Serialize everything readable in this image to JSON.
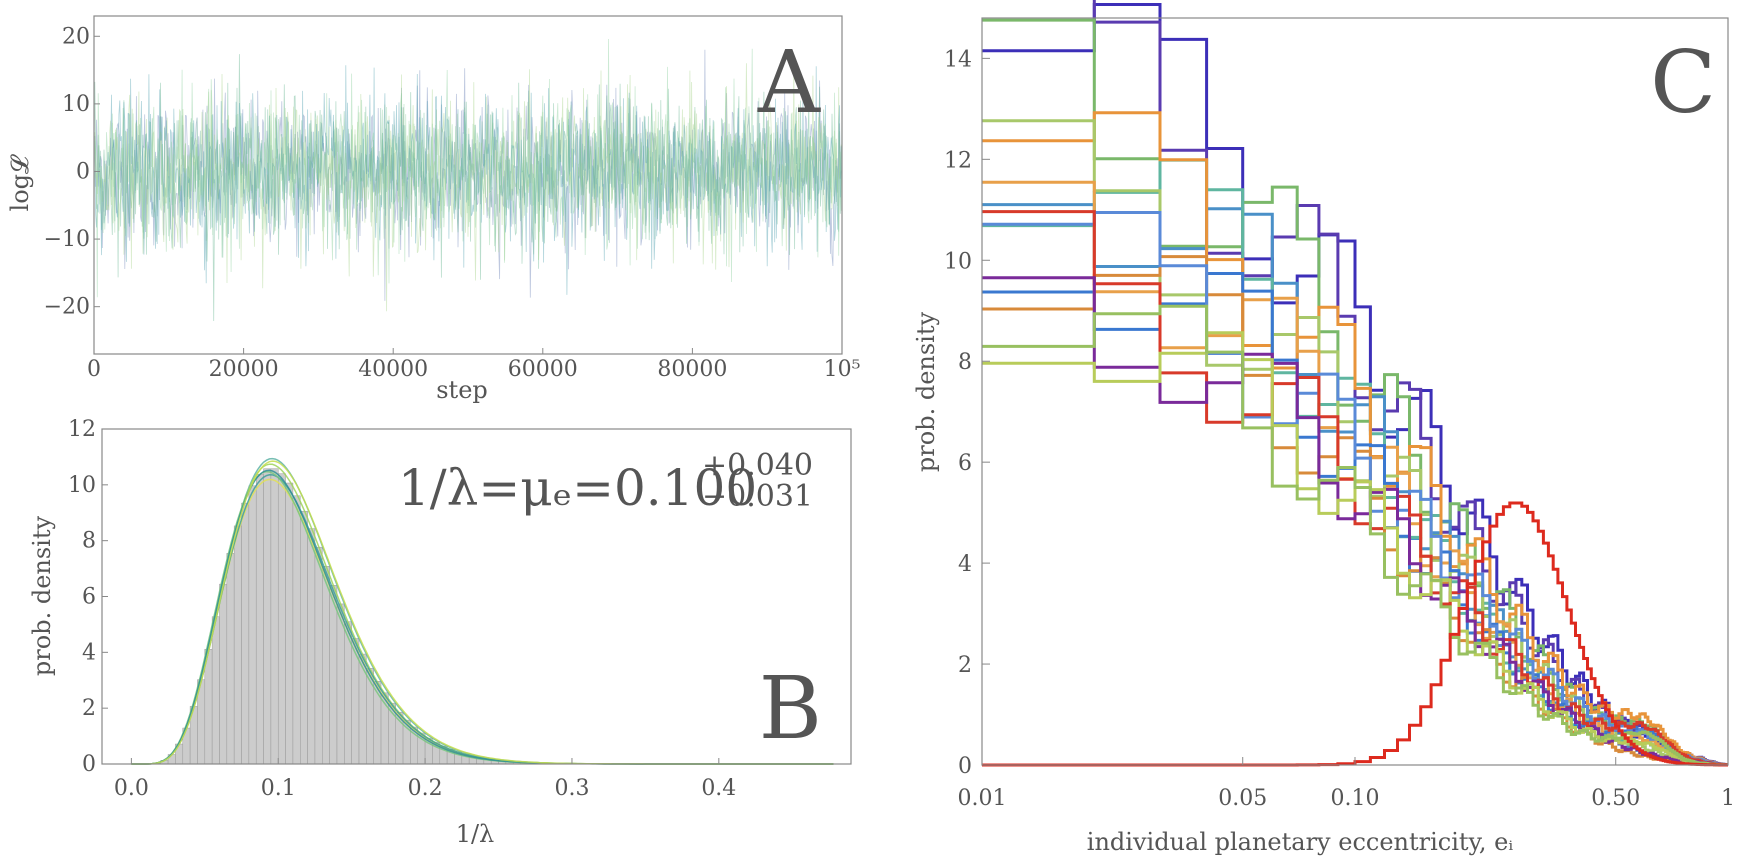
{
  "chart_data": [
    {
      "type": "line",
      "panel_label": "A",
      "xlabel": "step",
      "ylabel": "log𝓛",
      "xlim": [
        0,
        100000
      ],
      "ylim": [
        -27,
        23
      ],
      "x_ticks": [
        "0",
        "20000",
        "40000",
        "60000",
        "80000",
        "10⁵"
      ],
      "y_ticks": [
        "20",
        "10",
        "0",
        "−10",
        "−20"
      ],
      "description_of_data": "trace of many overlapping chains fluctuating around 0 with spread roughly ±10, occasional excursions to ±20",
      "trace_mean": 0,
      "trace_sd": 5.5,
      "series_colors": [
        "#6f86b8",
        "#63b48f",
        "#a7d28a",
        "#4f9fb0",
        "#8fd0a0"
      ],
      "grid": false
    },
    {
      "type": "bar",
      "panel_label": "B",
      "xlabel": "1/λ",
      "ylabel": "prob. density",
      "xlim": [
        -0.02,
        0.49
      ],
      "ylim": [
        0,
        12
      ],
      "x_ticks": [
        "0.0",
        "0.1",
        "0.2",
        "0.3",
        "0.4"
      ],
      "y_ticks": [
        "0",
        "2",
        "4",
        "6",
        "8",
        "10",
        "12"
      ],
      "annotation_main": "1/λ=μₑ=0.100",
      "annotation_sup": "+0.040",
      "annotation_sub": "−0.031",
      "hist_color": "#cccccc",
      "curve_colors": [
        "#5fb3a6",
        "#9fd45a",
        "#e2e055",
        "#3f9f9a",
        "#78c77d",
        "#2f8f95",
        "#c6de4d"
      ],
      "density_peak_x": 0.095,
      "density_peak_y": 10.6,
      "grid": false
    },
    {
      "type": "line",
      "panel_label": "C",
      "xlabel": "individual planetary eccentricity, eᵢ",
      "ylabel": "prob. density",
      "x_scale": "log",
      "xlim": [
        0.01,
        1
      ],
      "ylim": [
        0,
        14.8
      ],
      "x_ticks": [
        "0.01",
        "0.05",
        "0.10",
        "0.50",
        "1"
      ],
      "y_ticks": [
        "0",
        "2",
        "4",
        "6",
        "8",
        "10",
        "12",
        "14"
      ],
      "step_series_first_bin_values": [
        14.15,
        14.05,
        13.7,
        12.38,
        12.32,
        11.98,
        11.1,
        11.02,
        10.7,
        10.2,
        10.08,
        9.55,
        9.5,
        9.25,
        9.12
      ],
      "step_series_colors": [
        "#3c2fb8",
        "#5a3bb0",
        "#7ab86a",
        "#4a90c8",
        "#5fb6a0",
        "#e8943a",
        "#a8c86a",
        "#e8a04a",
        "#3a78d0",
        "#d88a3a",
        "#5a8ad8",
        "#d83a2a",
        "#7a2a9a",
        "#b8cc5a",
        "#98c060"
      ],
      "peak_series_color": "#dd2a1e",
      "peak_series_peak_x": 0.27,
      "peak_series_peak_y": 5.2,
      "grid": false
    }
  ]
}
